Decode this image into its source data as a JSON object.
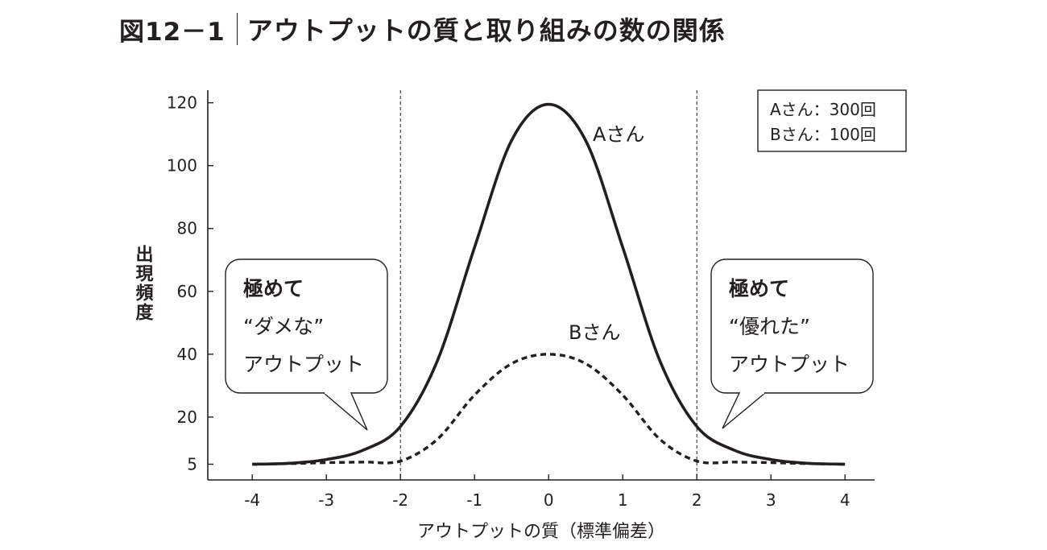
{
  "figure": {
    "number": "図12－1",
    "title": "アウトプットの質と取り組みの数の関係"
  },
  "chart_data": {
    "type": "line",
    "title": "アウトプットの質と取り組みの数の関係",
    "xlabel": "アウトプットの質（標準偏差）",
    "ylabel": "出現頻度",
    "x_ticks": [
      "-4",
      "-3",
      "-2",
      "-1",
      "0",
      "1",
      "2",
      "3",
      "4"
    ],
    "y_ticks": [
      "5",
      "20",
      "40",
      "60",
      "80",
      "100",
      "120"
    ],
    "xlim": [
      -4.6,
      4.4
    ],
    "ylim": [
      0,
      124
    ],
    "vertical_reference_lines": [
      -2,
      2
    ],
    "x": [
      -4.0,
      -3.5,
      -3.0,
      -2.5,
      -2.0,
      -1.5,
      -1.0,
      -0.5,
      0.0,
      0.5,
      1.0,
      1.5,
      2.0,
      2.5,
      3.0,
      3.5,
      4.0
    ],
    "series": [
      {
        "name": "Aさん",
        "line_style": "solid",
        "values": [
          5,
          5.3,
          6.5,
          9.5,
          17,
          38,
          74,
          108,
          119.5,
          108,
          74,
          38,
          17,
          9.5,
          6.5,
          5.3,
          5
        ]
      },
      {
        "name": "Bさん",
        "line_style": "dashed",
        "values": [
          5,
          5.2,
          5.5,
          5.7,
          6,
          13,
          27,
          37,
          40,
          37,
          27,
          13,
          6,
          5.7,
          5.5,
          5.2,
          5
        ]
      }
    ],
    "legend": {
      "position": "top-right",
      "entries": [
        "Aさん：300回",
        "Bさん：100回"
      ]
    },
    "annotations": [
      {
        "side": "left",
        "lines": [
          "極めて",
          "“ダメな”",
          "アウトプット"
        ]
      },
      {
        "side": "right",
        "lines": [
          "極めて",
          "“優れた”",
          "アウトプット"
        ]
      }
    ],
    "colors": {
      "ink": "#231f20",
      "background": "#ffffff"
    }
  }
}
